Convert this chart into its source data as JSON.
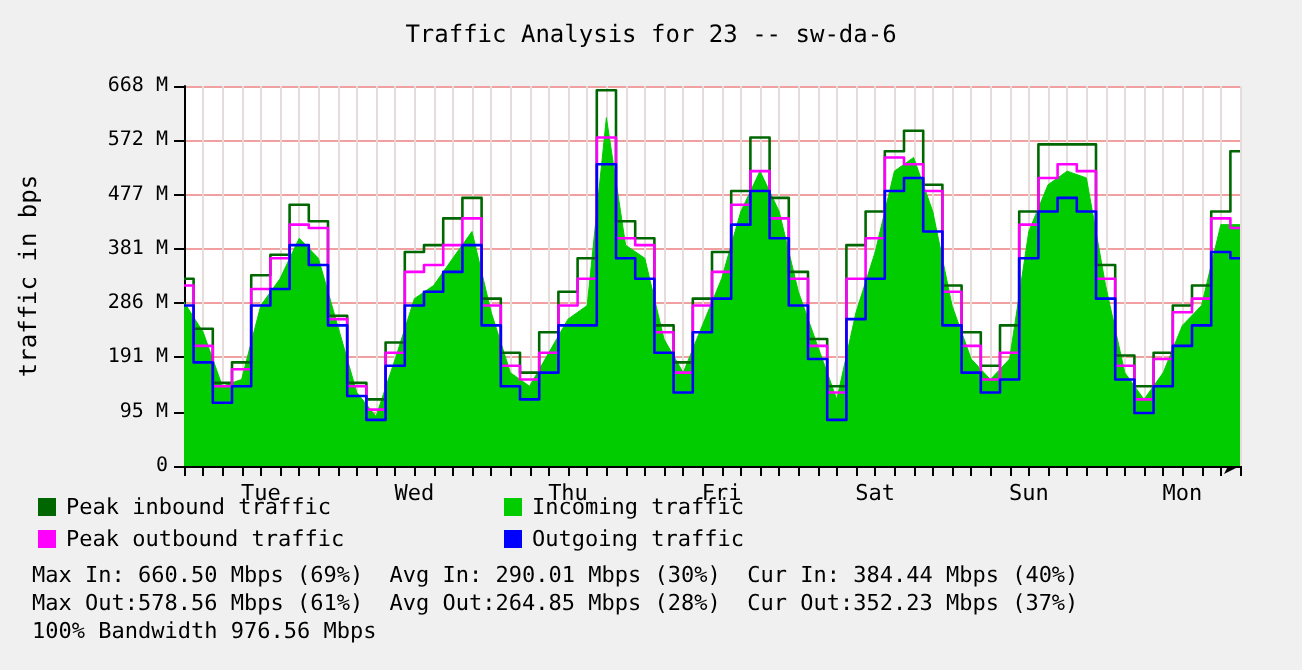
{
  "chart_data": {
    "type": "step",
    "title": "Traffic Analysis for 23 -- sw-da-6",
    "ylabel": "traffic in bps",
    "categories": [
      null,
      null,
      null,
      null,
      "Tue",
      null,
      null,
      null,
      null,
      null,
      null,
      null,
      "Wed",
      null,
      null,
      null,
      null,
      null,
      null,
      null,
      "Thu",
      null,
      null,
      null,
      null,
      null,
      null,
      null,
      "Fri",
      null,
      null,
      null,
      null,
      null,
      null,
      null,
      "Sat",
      null,
      null,
      null,
      null,
      null,
      null,
      null,
      "Sun",
      null,
      null,
      null,
      null,
      null,
      null,
      null,
      "Mon",
      null,
      null,
      null
    ],
    "series": [
      {
        "name": "Peak inbound traffic",
        "color": "#006600",
        "values": [
          329,
          241,
          146,
          182,
          335,
          371,
          459,
          430,
          264,
          146,
          117,
          217,
          376,
          388,
          435,
          471,
          294,
          199,
          164,
          235,
          306,
          365,
          660,
          430,
          400,
          247,
          182,
          294,
          376,
          483,
          577,
          471,
          341,
          223,
          140,
          388,
          447,
          553,
          589,
          494,
          317,
          235,
          176,
          247,
          447,
          565,
          565,
          565,
          353,
          194,
          140,
          199,
          282,
          317,
          447,
          553
        ]
      },
      {
        "name": "Incoming traffic",
        "type": "area",
        "color": "#00cc00",
        "values": [
          288,
          235,
          140,
          152,
          282,
          329,
          400,
          365,
          247,
          129,
          87,
          188,
          294,
          317,
          365,
          412,
          270,
          164,
          140,
          199,
          258,
          282,
          612,
          388,
          365,
          223,
          164,
          247,
          329,
          447,
          518,
          447,
          306,
          211,
          117,
          270,
          376,
          518,
          542,
          447,
          282,
          188,
          152,
          188,
          412,
          494,
          518,
          506,
          317,
          164,
          117,
          164,
          247,
          282,
          424,
          424
        ]
      },
      {
        "name": "Peak outbound traffic",
        "color": "#ff00ff",
        "values": [
          317,
          211,
          140,
          170,
          311,
          365,
          424,
          418,
          258,
          140,
          99,
          199,
          341,
          353,
          388,
          435,
          282,
          176,
          152,
          199,
          282,
          329,
          577,
          400,
          388,
          235,
          164,
          282,
          341,
          459,
          518,
          435,
          329,
          211,
          129,
          329,
          400,
          542,
          530,
          483,
          306,
          211,
          152,
          199,
          424,
          506,
          530,
          518,
          329,
          176,
          117,
          188,
          270,
          294,
          435,
          418
        ]
      },
      {
        "name": "Outgoing traffic",
        "color": "#0000ff",
        "values": [
          282,
          182,
          111,
          140,
          282,
          311,
          388,
          353,
          247,
          123,
          81,
          176,
          282,
          306,
          341,
          388,
          247,
          140,
          117,
          164,
          247,
          247,
          530,
          365,
          329,
          199,
          129,
          235,
          294,
          424,
          483,
          400,
          282,
          188,
          81,
          258,
          329,
          483,
          506,
          412,
          247,
          164,
          129,
          152,
          365,
          447,
          471,
          447,
          294,
          152,
          93,
          140,
          211,
          247,
          376,
          365
        ]
      }
    ],
    "ylim": [
      0,
      667.57
    ],
    "yticks": [
      {
        "value": 0,
        "label": "0"
      },
      {
        "value": 95.37,
        "label": "95 M"
      },
      {
        "value": 190.73,
        "label": "191 M"
      },
      {
        "value": 286.1,
        "label": "286 M"
      },
      {
        "value": 381.47,
        "label": "381 M"
      },
      {
        "value": 476.84,
        "label": "477 M"
      },
      {
        "value": 572.2,
        "label": "572 M"
      },
      {
        "value": 667.57,
        "label": "668 M"
      }
    ],
    "grid": true,
    "legend": "bottom left",
    "marker": "none",
    "line_style": "solid",
    "annotations": [
      "Max In: 660.50 Mbps (69%)  Avg In: 290.01 Mbps (30%)  Cur In: 384.44 Mbps (40%)",
      "Max Out:578.56 Mbps (61%)  Avg Out:264.85 Mbps (28%)  Cur Out:352.23 Mbps (37%)",
      "100% Bandwidth 976.56 Mbps"
    ]
  }
}
